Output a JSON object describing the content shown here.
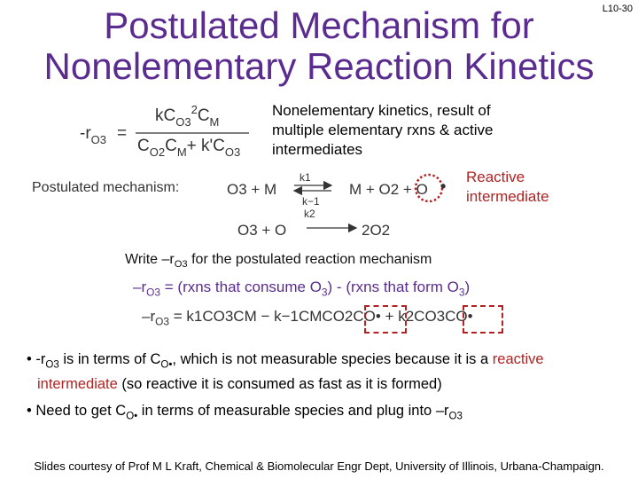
{
  "slide_number": "L10-30",
  "title_line1": "Postulated Mechanism for",
  "title_line2": "Nonelementary Reaction Kinetics",
  "rate_law": {
    "lhs": "-r",
    "lhs_sub": "O3",
    "numerator": "kC",
    "numerator_tail": "C",
    "numerator_sub1": "O3",
    "numerator_sup": "2",
    "numerator_sub2": "M",
    "denominator": "C",
    "denominator_sub1": "O2",
    "denominator_mid": "C",
    "denominator_sub2": "M",
    "denominator_plus": "+ k'C",
    "denominator_sub3": "O3"
  },
  "nonelementary_note": "Nonelementary kinetics, result of multiple elementary rxns & active intermediates",
  "reactive_intermediate_label": "Reactive intermediate",
  "postulated_label": "Postulated mechanism:",
  "step1": {
    "reactants": "O3 + M",
    "k_forward": "k1",
    "k_reverse": "k−1",
    "products": "M + O2 + O",
    "dot": "•"
  },
  "step2": {
    "reactants": "O3 + O",
    "k_forward": "k2",
    "products": "2O2"
  },
  "write_instruction": "Write –r",
  "write_instruction_sub": "O3",
  "write_instruction_tail": " for the postulated reaction mechanism",
  "consume_form": {
    "lhs": "–r",
    "lhs_sub": "O3",
    "eq": "=",
    "consume": "(rxns that consume O",
    "consume_sub": "3",
    "minus": ")  -  ",
    "form": "(rxns that form O",
    "form_sub": "3",
    "close": ")"
  },
  "rate_expression": {
    "lhs": "–r",
    "lhs_sub": "O3",
    "rhs": "= k1CO3CM − k−1CMCO2CO• + k2CO3CO•"
  },
  "bullet1_a": "-r",
  "bullet1_a_sub": "O3",
  "bullet1_b": " is in terms of C",
  "bullet1_b_sub": "O•",
  "bullet1_c": ", which is not measurable species because it is a ",
  "bullet1_red": "reactive intermediate",
  "bullet1_d": " (so reactive it is consumed as fast as it is formed)",
  "bullet2_a": "Need to get C",
  "bullet2_a_sub": "O•",
  "bullet2_b": " in terms of measurable species and plug into –r",
  "bullet2_b_sub": "O3",
  "credit": "Slides courtesy of Prof M L Kraft, Chemical & Biomolecular Engr Dept, University of Illinois, Urbana-Champaign."
}
